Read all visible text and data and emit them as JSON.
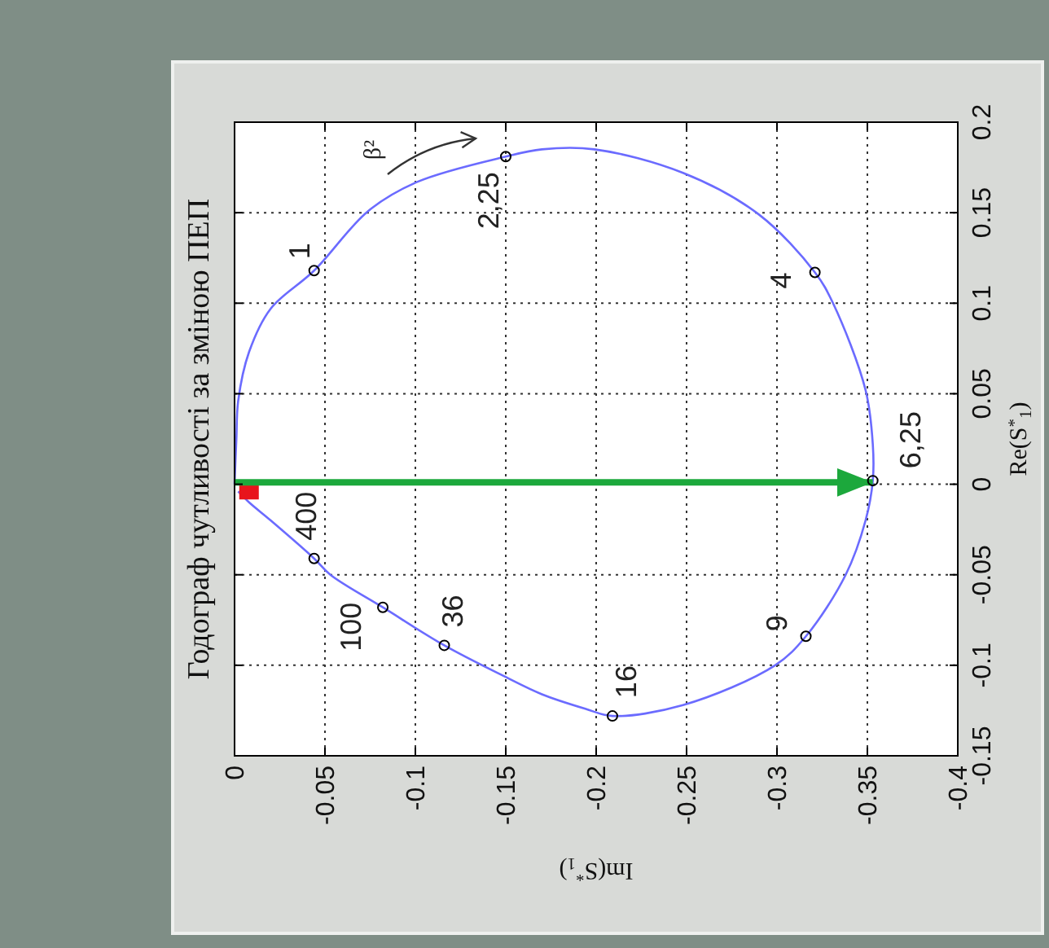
{
  "chart_data": {
    "type": "line",
    "title": "Годограф чутливості за зміною ПЕП",
    "xlabel": "Im(S$^{*}$$_{1}$)",
    "ylabel": "Re(S$^{*}$$_{1}$)",
    "xlim": [
      0,
      -0.4
    ],
    "xticks": [
      0,
      -0.05,
      -0.1,
      -0.15,
      -0.2,
      -0.25,
      -0.3,
      -0.35,
      -0.4
    ],
    "ylim": [
      -0.15,
      0.2
    ],
    "yticks": [
      -0.15,
      -0.1,
      -0.05,
      0,
      0.05,
      0.1,
      0.15,
      0.2
    ],
    "grid": true,
    "series": [
      {
        "color": "#6b6bff",
        "x": [
          0,
          -0.001,
          -0.002,
          -0.008,
          -0.02,
          -0.044,
          -0.074,
          -0.101,
          -0.15,
          -0.17,
          -0.199,
          -0.248,
          -0.29,
          -0.321,
          -0.331,
          -0.349,
          -0.353,
          -0.353,
          -0.349,
          -0.338,
          -0.316,
          -0.299,
          -0.248,
          -0.209,
          -0.194,
          -0.17,
          -0.149,
          -0.116,
          -0.082,
          -0.053,
          -0.044,
          -0.02,
          -0.008,
          -0.002
        ],
        "values": [
          0,
          0.025,
          0.046,
          0.073,
          0.097,
          0.118,
          0.151,
          0.167,
          0.181,
          0.185,
          0.185,
          0.172,
          0.149,
          0.117,
          0.1,
          0.052,
          0.022,
          0.002,
          -0.02,
          -0.05,
          -0.084,
          -0.1,
          -0.122,
          -0.128,
          -0.124,
          -0.116,
          -0.106,
          -0.089,
          -0.068,
          -0.05,
          -0.041,
          -0.02,
          -0.01,
          -0.004
        ]
      },
      {
        "type": "scatter",
        "color": "#e8141c",
        "marker": "square",
        "x": [
          -0.008
        ],
        "values": [
          -0.003
        ]
      },
      {
        "color": "#1ca83c",
        "x": [
          0,
          -0.353
        ],
        "values": [
          0.001,
          0.001
        ]
      },
      {
        "type": "scatter",
        "color": "#000000",
        "marker": "circle",
        "x": [
          -0.044,
          -0.15,
          -0.321,
          -0.353,
          -0.316,
          -0.209,
          -0.116,
          -0.082,
          -0.044
        ],
        "values": [
          0.118,
          0.181,
          0.117,
          0.002,
          -0.084,
          -0.128,
          -0.089,
          -0.068,
          -0.041
        ]
      }
    ],
    "annotations": [
      {
        "text": "1",
        "x": -0.044,
        "y": 0.118
      },
      {
        "text": "2,25",
        "x": -0.15,
        "y": 0.181
      },
      {
        "text": "4",
        "x": -0.321,
        "y": 0.117
      },
      {
        "text": "6,25",
        "x": -0.353,
        "y": 0.002
      },
      {
        "text": "9",
        "x": -0.316,
        "y": -0.084
      },
      {
        "text": "16",
        "x": -0.209,
        "y": -0.128
      },
      {
        "text": "36",
        "x": -0.116,
        "y": -0.089
      },
      {
        "text": "100",
        "x": -0.082,
        "y": -0.068
      },
      {
        "text": "400",
        "x": -0.044,
        "y": -0.041
      },
      "β²"
    ]
  }
}
